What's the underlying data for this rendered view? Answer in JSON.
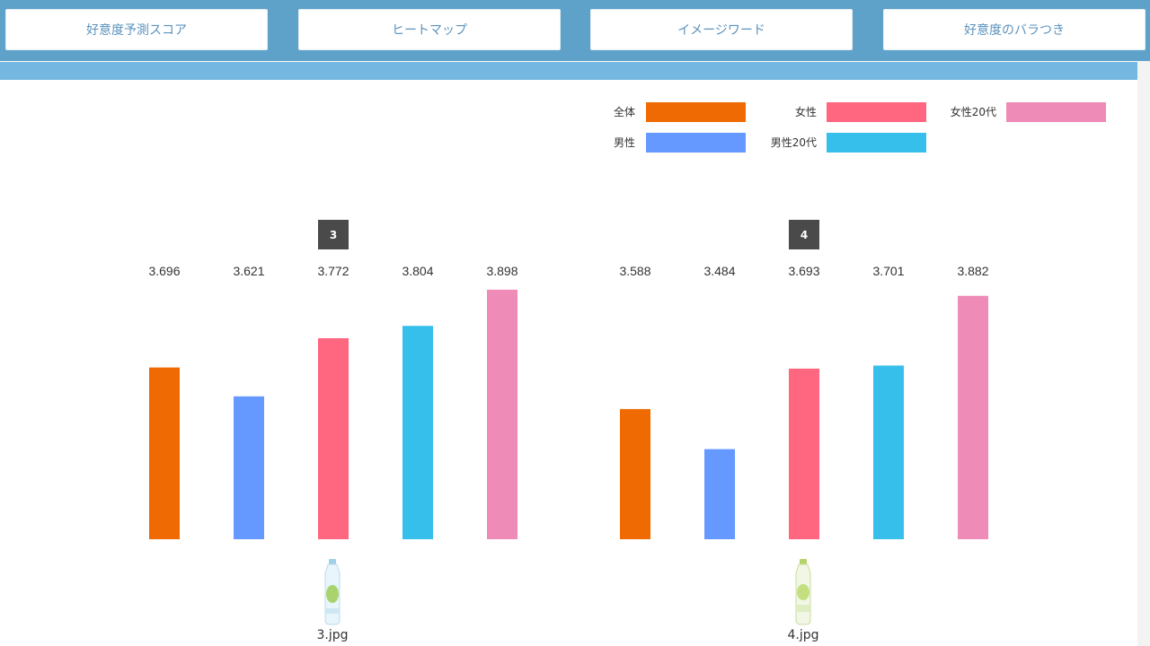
{
  "tabs": [
    {
      "label": "好意度予測スコア"
    },
    {
      "label": "ヒートマップ"
    },
    {
      "label": "イメージワード"
    },
    {
      "label": "好意度のバラつき"
    }
  ],
  "legend": [
    {
      "label": "全体",
      "color": "#ef6a03"
    },
    {
      "label": "女性",
      "color": "#ff6680"
    },
    {
      "label": "女性20代",
      "color": "#ee8bb6"
    },
    {
      "label": "男性",
      "color": "#6699ff"
    },
    {
      "label": "男性20代",
      "color": "#37bfec"
    }
  ],
  "chart_data": {
    "type": "bar",
    "series_order": [
      "全体",
      "男性",
      "女性",
      "男性20代",
      "女性20代"
    ],
    "colors": [
      "#ef6a03",
      "#6699ff",
      "#ff6680",
      "#37bfec",
      "#ee8bb6"
    ],
    "groups": [
      {
        "badge": "3",
        "image_label": "3.jpg",
        "values": [
          3.696,
          3.621,
          3.772,
          3.804,
          3.898
        ]
      },
      {
        "badge": "4",
        "image_label": "4.jpg",
        "values": [
          3.588,
          3.484,
          3.693,
          3.701,
          3.882
        ]
      }
    ],
    "ylim": [
      3.25,
      3.9
    ],
    "grid": false
  }
}
